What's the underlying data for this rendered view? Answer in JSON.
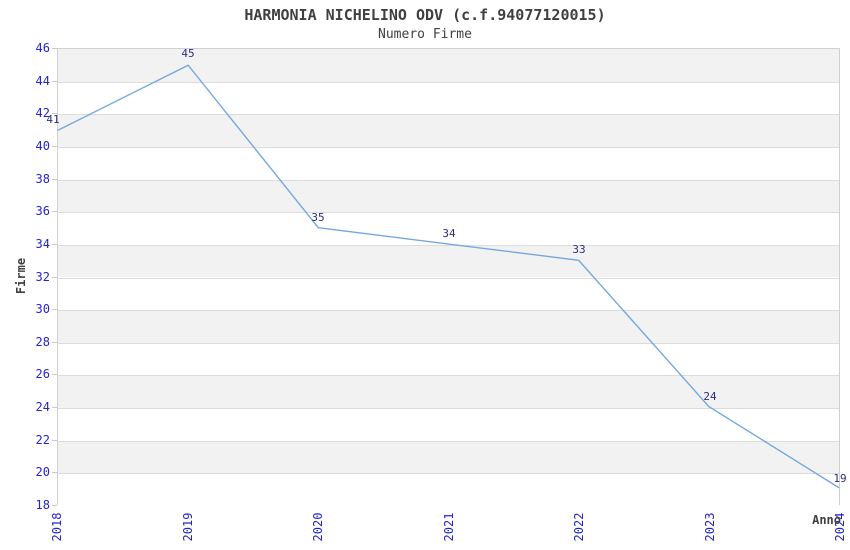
{
  "title": "HARMONIA NICHELINO ODV (c.f.94077120015)",
  "subtitle": "Numero Firme",
  "chart_data": {
    "type": "line",
    "title": "HARMONIA NICHELINO ODV (c.f.94077120015)",
    "subtitle": "Numero Firme",
    "categories": [
      "2018",
      "2019",
      "2020",
      "2021",
      "2022",
      "2023",
      "2024"
    ],
    "values": [
      41,
      45,
      35,
      34,
      33,
      24,
      19
    ],
    "xlabel": "Anno",
    "ylabel": "Firme",
    "ylim": [
      18,
      46
    ],
    "ytick_step": 2,
    "yticks": [
      18,
      20,
      22,
      24,
      26,
      28,
      30,
      32,
      34,
      36,
      38,
      40,
      42,
      44,
      46
    ],
    "grid": "horizontal-bands",
    "legend": "none",
    "point_labels_visible": true,
    "colors": {
      "line": "#74a9e0",
      "tick_label": "#2424cc",
      "point_label": "#2e2e7c",
      "text": "#404040",
      "band": "#f2f2f2",
      "gridline": "#dcdcdc",
      "border": "#d0d0d0",
      "background": "#ffffff"
    }
  }
}
